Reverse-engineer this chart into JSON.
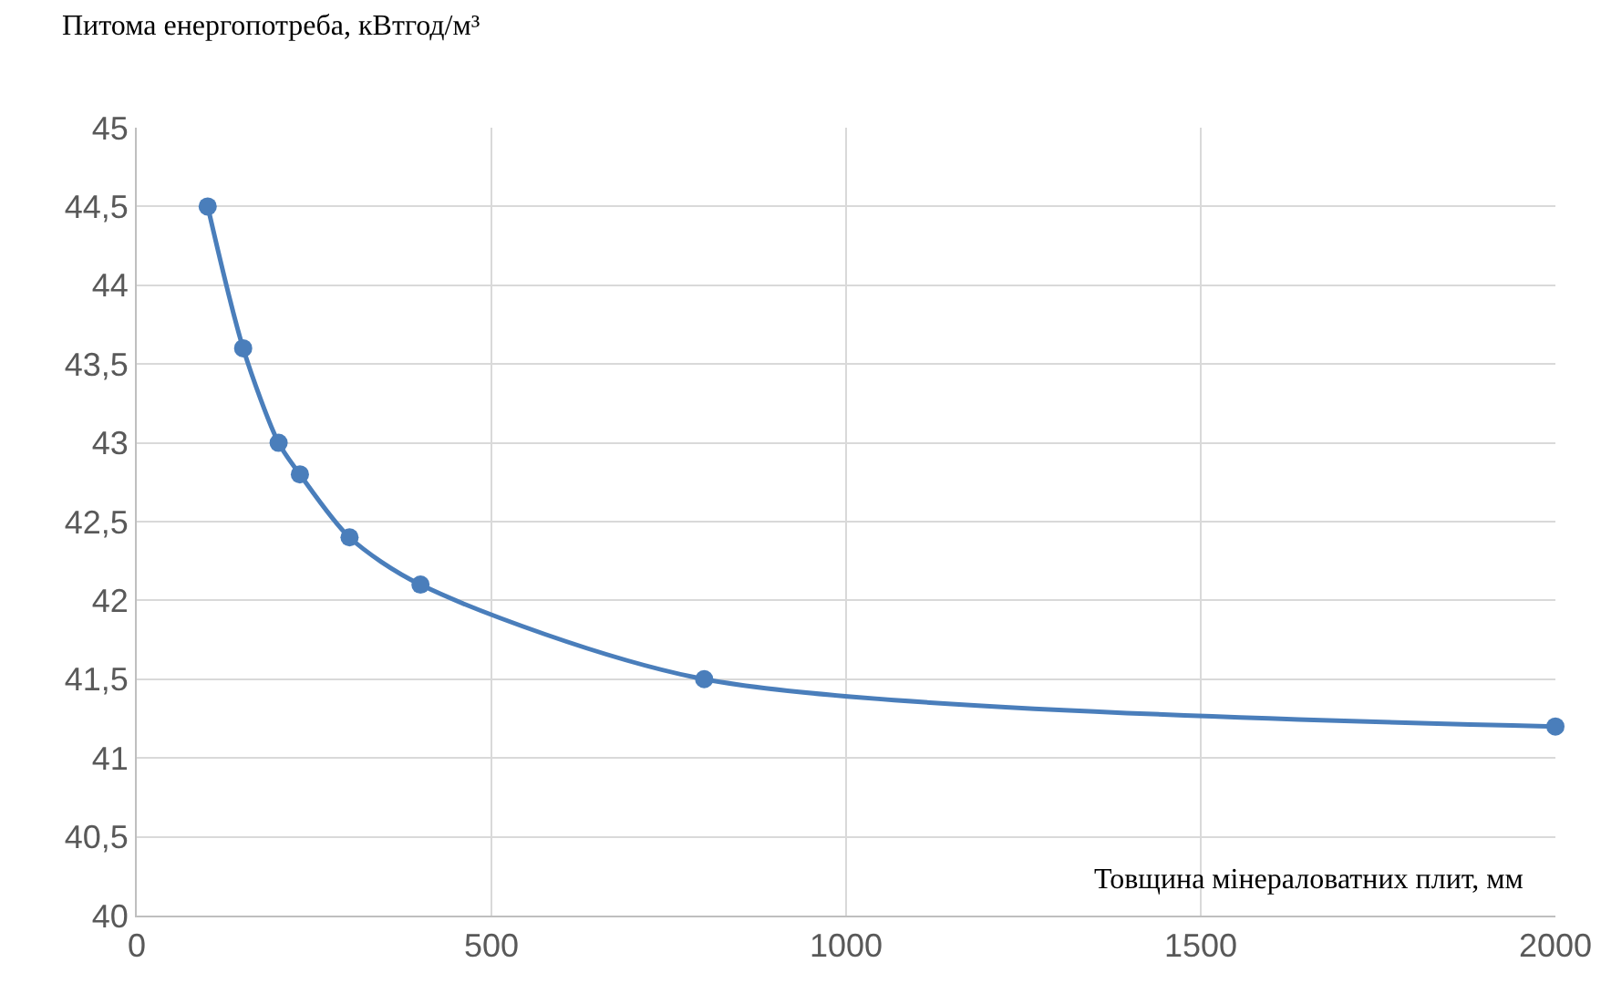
{
  "chart_data": {
    "type": "line",
    "ylabel": "Питома енергопотреба, кВтгод/м³",
    "xlabel": "Товщина мінераловатних плит, мм",
    "x": [
      100,
      150,
      200,
      230,
      300,
      400,
      800,
      2000
    ],
    "series": [
      {
        "color": "#4a7ebb",
        "values": [
          44.5,
          43.6,
          43.0,
          42.8,
          42.4,
          42.1,
          41.5,
          41.2
        ]
      }
    ],
    "xlim": [
      0,
      2000
    ],
    "xticks": [
      0,
      500,
      1000,
      1500,
      2000
    ],
    "ylim": [
      40,
      45
    ],
    "yticks": [
      40,
      {
        "value": 40.5,
        "label": "40,5"
      },
      41,
      {
        "value": 41.5,
        "label": "41,5"
      },
      42,
      {
        "value": 42.5,
        "label": "42,5"
      },
      43,
      {
        "value": 43.5,
        "label": "43,5"
      },
      44,
      {
        "value": 44.5,
        "label": "44,5"
      },
      45
    ],
    "grid": true,
    "legend": false,
    "marker": "circle",
    "line_style": "solid"
  }
}
